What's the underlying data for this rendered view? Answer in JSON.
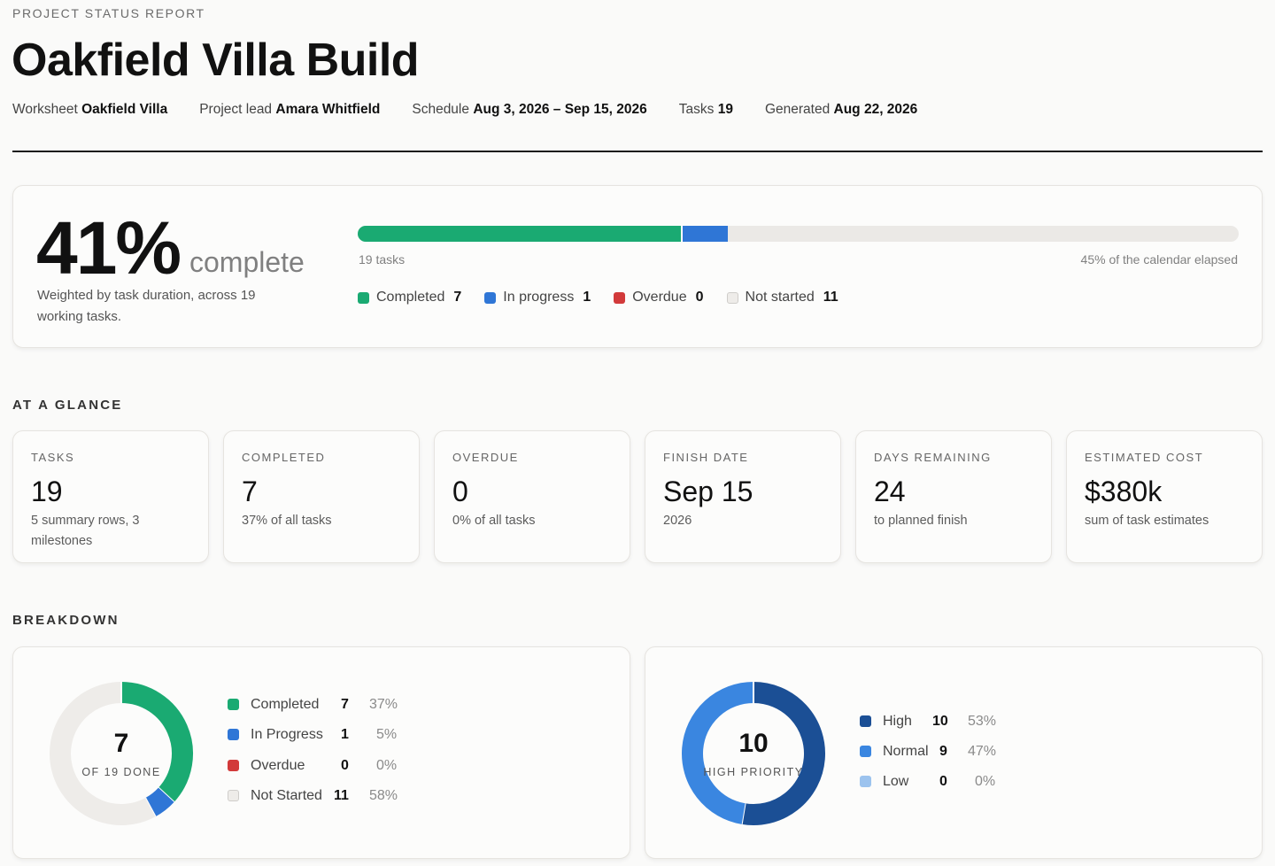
{
  "header": {
    "eyebrow": "PROJECT STATUS REPORT",
    "title": "Oakfield Villa Build",
    "meta": [
      {
        "label": "Worksheet",
        "value": "Oakfield Villa"
      },
      {
        "label": "Project lead",
        "value": "Amara Whitfield"
      },
      {
        "label": "Schedule",
        "value": "Aug 3, 2026 – Sep 15, 2026"
      },
      {
        "label": "Tasks",
        "value": "19"
      },
      {
        "label": "Generated",
        "value": "Aug 22, 2026"
      }
    ]
  },
  "hero": {
    "percent": "41%",
    "word": "complete",
    "note": "Weighted by task duration, across 19 working tasks.",
    "bar_left": "19 tasks",
    "bar_right": "45% of the calendar elapsed",
    "bar_fractions": {
      "completed": 0.367,
      "in_progress": 0.053
    },
    "legend": [
      {
        "label": "Completed",
        "count": "7",
        "color": "#1aaa72"
      },
      {
        "label": "In progress",
        "count": "1",
        "color": "#2f76d6"
      },
      {
        "label": "Overdue",
        "count": "0",
        "color": "#d23a3a"
      },
      {
        "label": "Not started",
        "count": "11",
        "color": "#eeece9"
      }
    ]
  },
  "at_a_glance": {
    "title": "AT A GLANCE",
    "cards": [
      {
        "label": "TASKS",
        "value": "19",
        "sub": "5 summary rows, 3 milestones"
      },
      {
        "label": "COMPLETED",
        "value": "7",
        "sub": "37% of all tasks"
      },
      {
        "label": "OVERDUE",
        "value": "0",
        "sub": "0% of all tasks"
      },
      {
        "label": "FINISH DATE",
        "value": "Sep 15",
        "sub": "2026"
      },
      {
        "label": "DAYS REMAINING",
        "value": "24",
        "sub": "to planned finish"
      },
      {
        "label": "ESTIMATED COST",
        "value": "$380k",
        "sub": "sum of task estimates"
      }
    ]
  },
  "breakdown": {
    "title": "BREAKDOWN",
    "status": {
      "center_value": "7",
      "center_label": "OF 19 DONE",
      "items": [
        {
          "label": "Completed",
          "count": "7",
          "pct": "37%",
          "value": 7,
          "color": "#1aaa72"
        },
        {
          "label": "In Progress",
          "count": "1",
          "pct": "5%",
          "value": 1,
          "color": "#2f76d6"
        },
        {
          "label": "Overdue",
          "count": "0",
          "pct": "0%",
          "value": 0,
          "color": "#d23a3a"
        },
        {
          "label": "Not Started",
          "count": "11",
          "pct": "58%",
          "value": 11,
          "color": "#eeece9"
        }
      ]
    },
    "priority": {
      "center_value": "10",
      "center_label": "HIGH PRIORITY",
      "items": [
        {
          "label": "High",
          "count": "10",
          "pct": "53%",
          "value": 10,
          "color": "#1b4f95"
        },
        {
          "label": "Normal",
          "count": "9",
          "pct": "47%",
          "value": 9,
          "color": "#3a86e0"
        },
        {
          "label": "Low",
          "count": "0",
          "pct": "0%",
          "value": 0,
          "color": "#9cc3ee"
        }
      ]
    }
  }
}
